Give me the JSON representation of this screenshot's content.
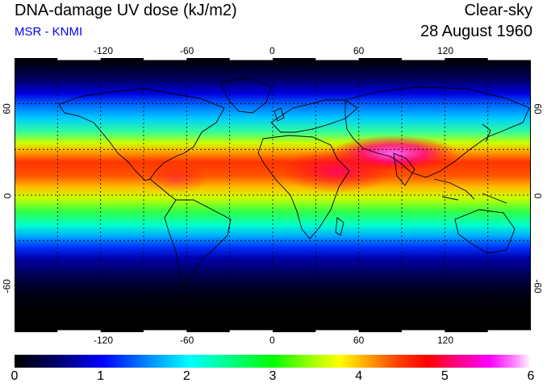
{
  "header": {
    "title": "DNA-damage UV dose (kJ/m2)",
    "subtitle": "MSR - KNMI",
    "sky_condition": "Clear-sky",
    "date": "28 August 1960"
  },
  "colors": {
    "subtitle": "#0000ff",
    "frame": "#000000",
    "gridline": "#000000"
  },
  "map": {
    "projection": "equirectangular",
    "lon_range": [
      -180,
      180
    ],
    "lat_range": [
      -90,
      90
    ],
    "lon_ticks": [
      "-120",
      "-60",
      "0",
      "60",
      "120"
    ],
    "lat_ticks": [
      "60",
      "0",
      "-60"
    ],
    "gridlines": "dashed, every 30 degrees"
  },
  "colorbar": {
    "min": 0,
    "max": 6,
    "ticks": [
      "0",
      "1",
      "2",
      "3",
      "4",
      "5",
      "6"
    ],
    "colors": [
      "#000000",
      "#000066",
      "#0000ff",
      "#00aaff",
      "#00ffff",
      "#00ff80",
      "#00ff00",
      "#aaff00",
      "#ffff00",
      "#ffaa00",
      "#ff4400",
      "#ff0000",
      "#ff0088",
      "#ff00ff",
      "#ff88ff",
      "#ffffff"
    ]
  }
}
